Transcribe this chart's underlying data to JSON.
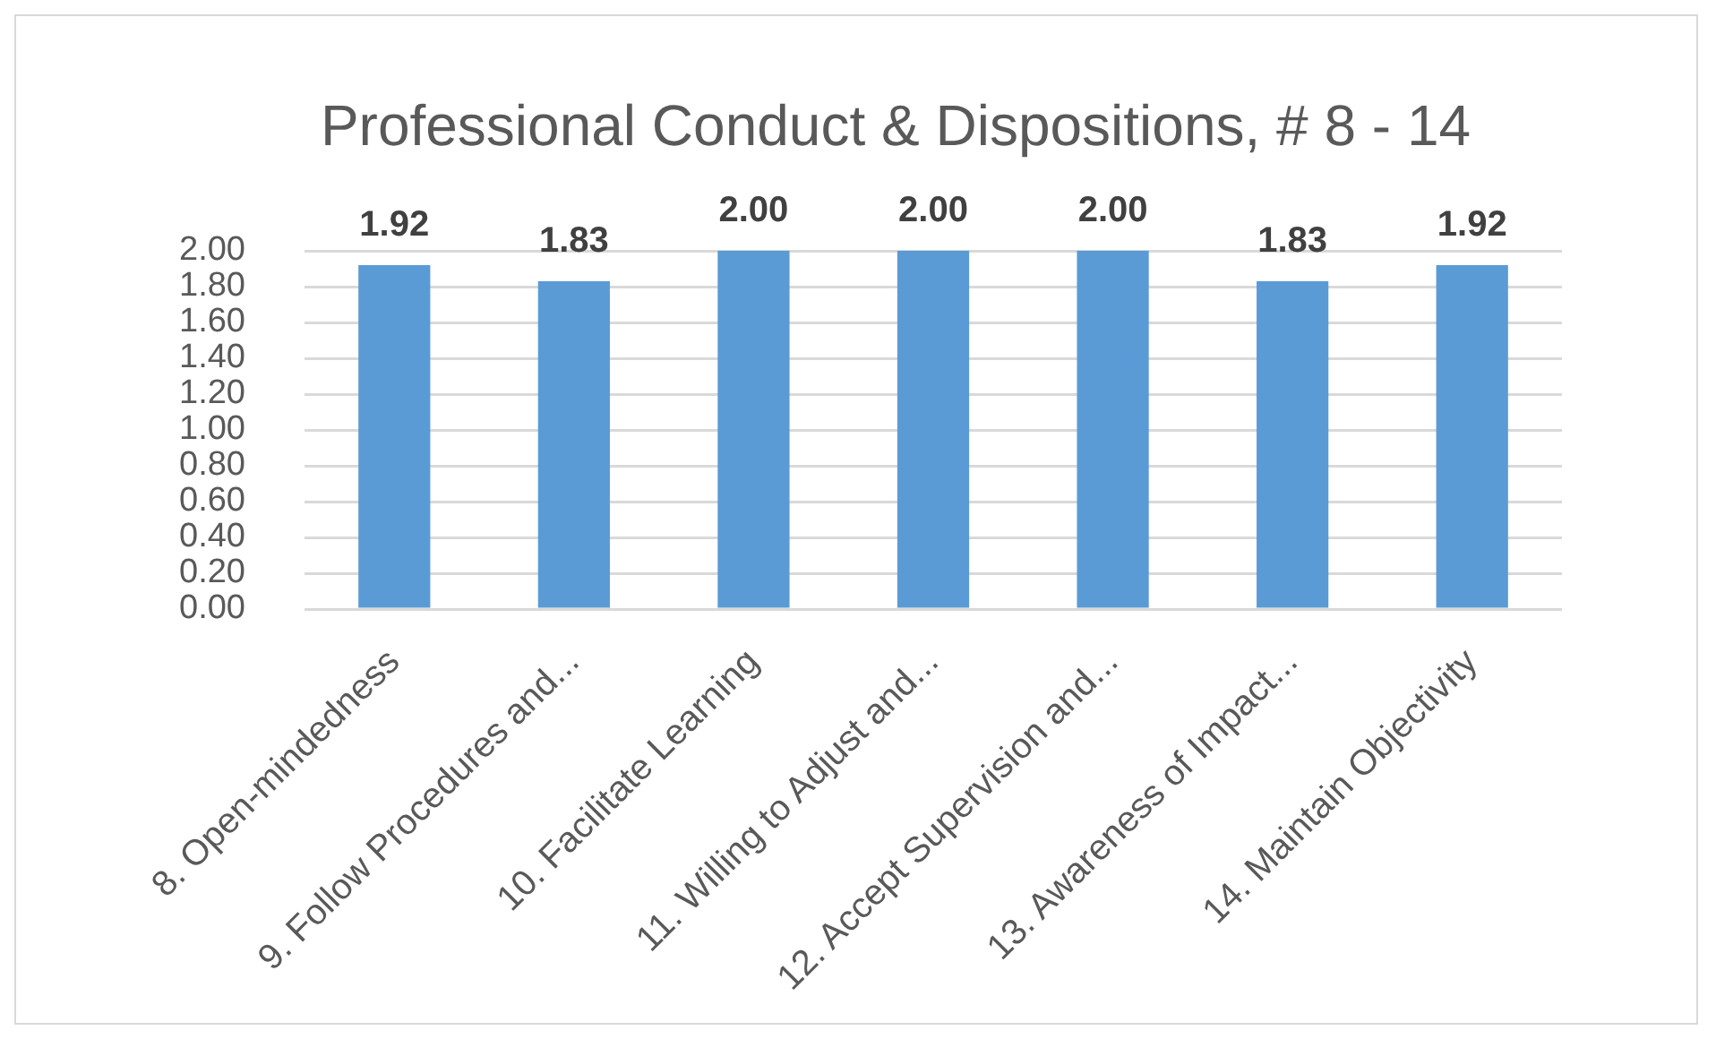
{
  "chart_data": {
    "type": "bar",
    "title": "Professional Conduct & Dispositions, # 8 - 14",
    "categories": [
      "8. Open-mindedness",
      "9. Follow Procedures and...",
      "10. Facilitate Learning",
      "11. Willing to Adjust and...",
      "12. Accept Supervision and...",
      "13. Awareness of Impact...",
      "14. Maintain Objectivity"
    ],
    "values": [
      1.92,
      1.83,
      2.0,
      2.0,
      2.0,
      1.83,
      1.92
    ],
    "value_labels": [
      "1.92",
      "1.83",
      "2.00",
      "2.00",
      "2.00",
      "1.83",
      "1.92"
    ],
    "color": "#5b9bd5",
    "ylim": [
      0,
      2
    ],
    "yticks": [
      {
        "value": 0,
        "label": "0.00"
      },
      {
        "value": 0.2,
        "label": "0.20"
      },
      {
        "value": 0.4,
        "label": "0.40"
      },
      {
        "value": 0.6,
        "label": "0.60"
      },
      {
        "value": 0.8,
        "label": "0.80"
      },
      {
        "value": 1,
        "label": "1.00"
      },
      {
        "value": 1.2,
        "label": "1.20"
      },
      {
        "value": 1.4,
        "label": "1.40"
      },
      {
        "value": 1.6,
        "label": "1.60"
      },
      {
        "value": 1.8,
        "label": "1.80"
      },
      {
        "value": 2,
        "label": "2.00"
      }
    ],
    "grid": "y"
  }
}
